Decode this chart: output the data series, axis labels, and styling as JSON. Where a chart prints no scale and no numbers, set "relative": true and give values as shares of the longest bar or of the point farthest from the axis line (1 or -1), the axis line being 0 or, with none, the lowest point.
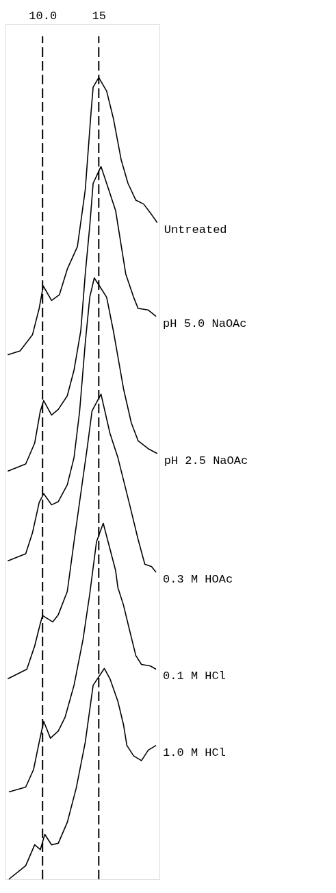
{
  "chart_data": {
    "type": "line",
    "relative": true,
    "xlim": [
      6.7,
      20.4
    ],
    "xticks": [
      {
        "value": 10,
        "label": "10.0"
      },
      15
    ],
    "line_style": "solid",
    "ref_lines": [
      {
        "axis": "x",
        "value": 10,
        "line_style": "dashed",
        "color": "#000000"
      },
      {
        "axis": "x",
        "value": 15,
        "line_style": "dashed",
        "color": "#000000"
      }
    ],
    "series": [
      {
        "name": "Untreated",
        "color": "#000000",
        "x": [
          6.9,
          8.0,
          9.1,
          9.7,
          10.06,
          10.8,
          11.5,
          12.2,
          13.1,
          13.8,
          14.3,
          14.5,
          15.0,
          15.7,
          16.3,
          17.0,
          17.6,
          18.3,
          19.0,
          19.7,
          20.2
        ],
        "values": [
          0.654,
          0.659,
          0.679,
          0.712,
          0.74,
          0.722,
          0.729,
          0.761,
          0.789,
          0.86,
          0.954,
          0.988,
          1.0,
          0.983,
          0.949,
          0.897,
          0.868,
          0.847,
          0.842,
          0.829,
          0.819
        ]
      },
      {
        "name": "pH 5.0 NaOAc",
        "color": "#000000",
        "x": [
          6.9,
          8.5,
          9.3,
          9.8,
          10.1,
          10.8,
          11.4,
          12.2,
          12.8,
          13.4,
          13.8,
          14.2,
          14.5,
          15.2,
          15.7,
          16.5,
          17.4,
          18.1,
          18.5,
          19.4,
          20.1
        ],
        "values": [
          0.509,
          0.518,
          0.544,
          0.584,
          0.597,
          0.579,
          0.586,
          0.603,
          0.635,
          0.684,
          0.755,
          0.815,
          0.868,
          0.889,
          0.868,
          0.834,
          0.755,
          0.726,
          0.712,
          0.71,
          0.702
        ]
      },
      {
        "name": "pH 2.5 NaOAc",
        "color": "#000000",
        "x": [
          6.9,
          8.5,
          9.1,
          9.7,
          10.1,
          10.8,
          11.4,
          12.2,
          12.8,
          13.3,
          13.8,
          14.2,
          14.6,
          15.2,
          15.7,
          16.3,
          17.2,
          17.9,
          18.5,
          19.4,
          20.2
        ],
        "values": [
          0.397,
          0.406,
          0.432,
          0.47,
          0.481,
          0.467,
          0.471,
          0.492,
          0.526,
          0.584,
          0.669,
          0.726,
          0.75,
          0.737,
          0.726,
          0.684,
          0.612,
          0.569,
          0.547,
          0.537,
          0.531
        ]
      },
      {
        "name": "0.3 M HOAc",
        "color": "#000000",
        "x": [
          6.9,
          8.6,
          9.3,
          9.8,
          10.0,
          10.9,
          11.4,
          12.2,
          12.8,
          13.4,
          14.0,
          14.4,
          15.2,
          16.0,
          16.7,
          17.2,
          17.7,
          18.5,
          19.1,
          19.7,
          20.1
        ],
        "values": [
          0.25,
          0.262,
          0.291,
          0.319,
          0.329,
          0.321,
          0.33,
          0.359,
          0.421,
          0.481,
          0.541,
          0.584,
          0.605,
          0.556,
          0.526,
          0.498,
          0.47,
          0.424,
          0.393,
          0.39,
          0.383
        ]
      },
      {
        "name": "0.1 M HCl",
        "color": "#000000",
        "x": [
          7.0,
          8.5,
          9.2,
          9.7,
          10.1,
          10.7,
          11.4,
          12.0,
          12.8,
          13.6,
          14.2,
          14.8,
          15.4,
          16.5,
          16.7,
          17.2,
          17.7,
          18.3,
          18.8,
          19.6,
          20.1
        ],
        "values": [
          0.109,
          0.115,
          0.137,
          0.171,
          0.197,
          0.176,
          0.185,
          0.202,
          0.242,
          0.299,
          0.356,
          0.421,
          0.444,
          0.385,
          0.364,
          0.342,
          0.313,
          0.279,
          0.268,
          0.266,
          0.262
        ]
      },
      {
        "name": "1.0 M HCl",
        "color": "#000000",
        "x": [
          7.0,
          8.5,
          9.3,
          9.8,
          10.2,
          10.8,
          11.4,
          12.2,
          13.0,
          13.8,
          14.5,
          15.5,
          16.0,
          16.7,
          17.2,
          17.5,
          18.1,
          18.8,
          19.4,
          20.1
        ],
        "values": [
          0.0,
          0.017,
          0.043,
          0.037,
          0.056,
          0.043,
          0.045,
          0.071,
          0.114,
          0.171,
          0.242,
          0.263,
          0.25,
          0.222,
          0.193,
          0.167,
          0.154,
          0.148,
          0.161,
          0.167
        ]
      }
    ]
  }
}
